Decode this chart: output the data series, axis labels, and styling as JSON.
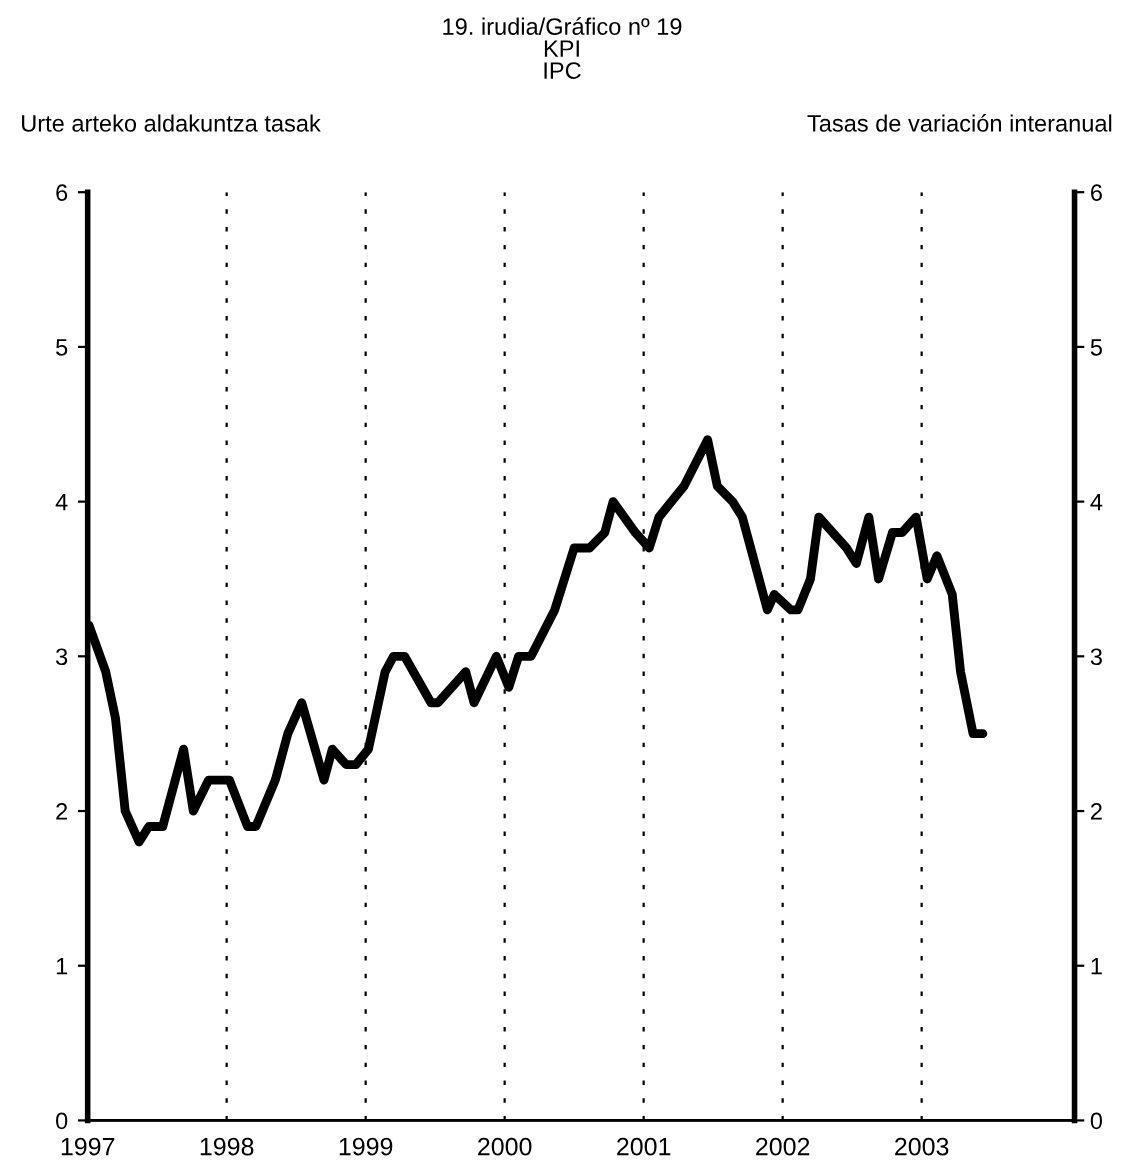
{
  "chart_data": {
    "type": "line",
    "title": "19. irudia/Gráfico nº 19\nKPI\nIPC",
    "ylabel": "Urte arteko aldakuntza tasak",
    "y2label": "Tasas de variación interanual",
    "x": [
      1997.01,
      1997.13,
      1997.2,
      1997.27,
      1997.37,
      1997.44,
      1997.54,
      1997.69,
      1997.76,
      1997.87,
      1998.02,
      1998.15,
      1998.21,
      1998.35,
      1998.44,
      1998.54,
      1998.7,
      1998.76,
      1998.86,
      1998.93,
      1999.02,
      1999.14,
      1999.2,
      1999.28,
      1999.47,
      1999.52,
      1999.72,
      1999.78,
      1999.94,
      2000.03,
      2000.1,
      2000.19,
      2000.36,
      2000.5,
      2000.61,
      2000.72,
      2000.78,
      2000.94,
      2001.04,
      2001.11,
      2001.29,
      2001.46,
      2001.53,
      2001.64,
      2001.71,
      2001.89,
      2001.94,
      2002.06,
      2002.11,
      2002.2,
      2002.26,
      2002.46,
      2002.53,
      2002.62,
      2002.69,
      2002.79,
      2002.86,
      2002.96,
      2003.04,
      2003.11,
      2003.22,
      2003.28,
      2003.37,
      2003.44
    ],
    "series": [
      {
        "color": "#000000",
        "values": [
          3.2,
          2.9,
          2.6,
          2.0,
          1.8,
          1.9,
          1.9,
          2.4,
          2.0,
          2.2,
          2.2,
          1.9,
          1.9,
          2.2,
          2.5,
          2.7,
          2.2,
          2.4,
          2.3,
          2.3,
          2.4,
          2.9,
          3.0,
          3.0,
          2.7,
          2.7,
          2.9,
          2.7,
          3.0,
          2.8,
          3.0,
          3.0,
          3.3,
          3.7,
          3.7,
          3.8,
          4.0,
          3.8,
          3.7,
          3.9,
          4.1,
          4.4,
          4.1,
          4.0,
          3.9,
          3.3,
          3.4,
          3.3,
          3.3,
          3.5,
          3.9,
          3.7,
          3.6,
          3.9,
          3.5,
          3.8,
          3.8,
          3.9,
          3.5,
          3.65,
          3.4,
          2.9,
          2.5,
          2.5
        ]
      }
    ],
    "xlim": [
      1997,
      2004.1
    ],
    "xticks": [
      1997,
      1998,
      1999,
      2000,
      2001,
      2002,
      2003
    ],
    "ylim": [
      0,
      6
    ],
    "yticks": [
      0,
      1,
      2,
      3,
      4,
      5,
      6
    ],
    "y2lim": [
      0,
      6
    ],
    "y2ticks": [
      0,
      1,
      2,
      3,
      4,
      5,
      6
    ],
    "grid": "x",
    "line_style": "solid"
  }
}
